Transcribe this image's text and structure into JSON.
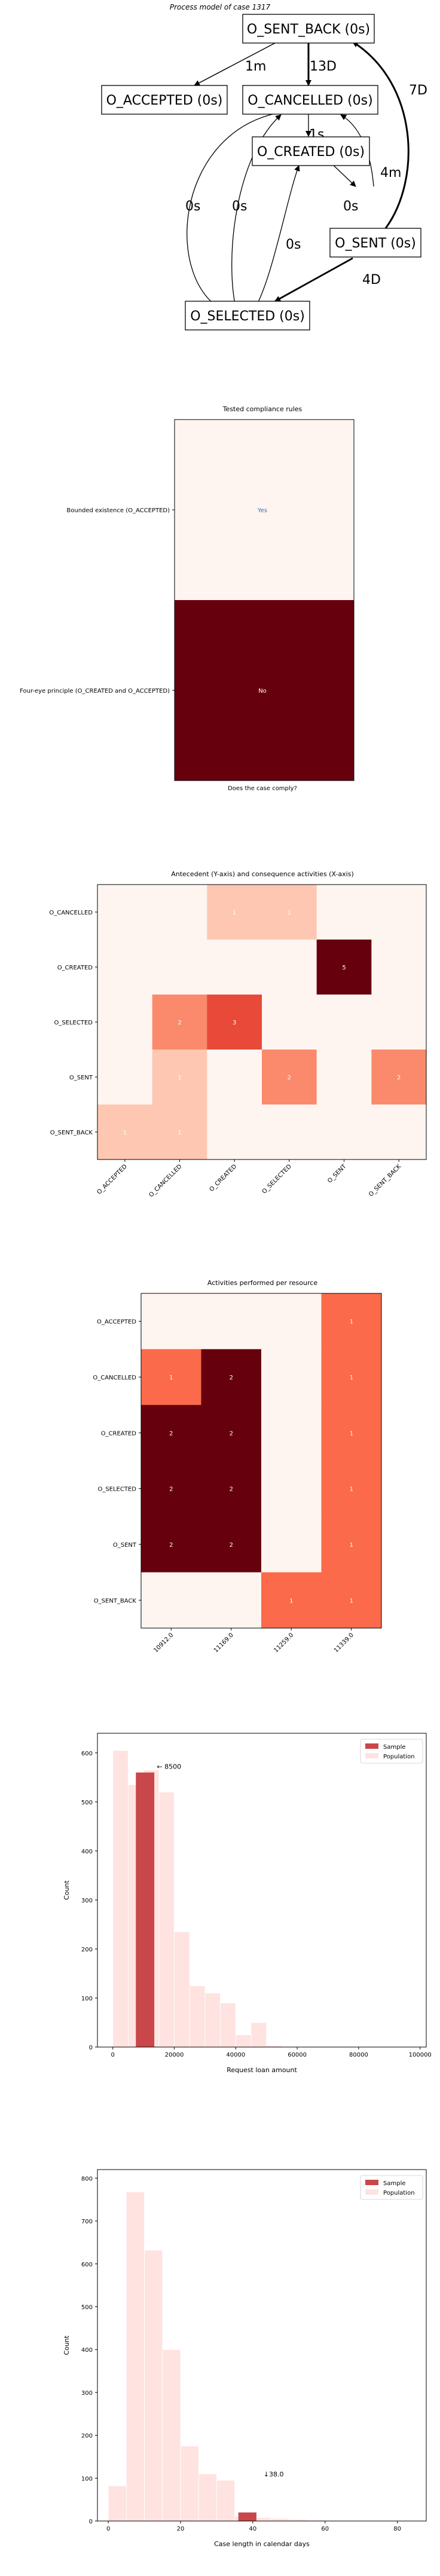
{
  "process_model": {
    "title": "Process model of case 1317",
    "nodes": [
      {
        "id": "O_SENT_BACK",
        "label": "O_SENT_BACK (0s)"
      },
      {
        "id": "O_ACCEPTED",
        "label": "O_ACCEPTED (0s)"
      },
      {
        "id": "O_CANCELLED",
        "label": "O_CANCELLED (0s)"
      },
      {
        "id": "O_CREATED",
        "label": "O_CREATED (0s)"
      },
      {
        "id": "O_SENT",
        "label": "O_SENT (0s)"
      },
      {
        "id": "O_SELECTED",
        "label": "O_SELECTED (0s)"
      }
    ],
    "edges": [
      {
        "from": "O_SENT_BACK",
        "to": "O_ACCEPTED",
        "label": "1m"
      },
      {
        "from": "O_SENT_BACK",
        "to": "O_CANCELLED",
        "label": "13D"
      },
      {
        "from": "O_CANCELLED",
        "to": "O_CREATED",
        "label": "1s"
      },
      {
        "from": "O_CANCELLED",
        "to": "O_SELECTED",
        "label": "0s"
      },
      {
        "from": "O_SELECTED",
        "to": "O_CANCELLED",
        "label": "0s"
      },
      {
        "from": "O_CREATED",
        "to": "O_SENT",
        "label": "0s"
      },
      {
        "from": "O_SELECTED",
        "to": "O_CREATED",
        "label": "0s"
      },
      {
        "from": "O_SENT",
        "to": "O_CANCELLED",
        "label": "4m"
      },
      {
        "from": "O_SENT",
        "to": "O_SELECTED",
        "label": "4D"
      },
      {
        "from": "O_SENT",
        "to": "O_SENT_BACK",
        "label": "7D"
      }
    ]
  },
  "compliance": {
    "title": "Tested compliance rules",
    "xlabel": "Does the case comply?",
    "rules": [
      "Bounded existence (O_ACCEPTED)",
      "Four-eye principle (O_CREATED and O_ACCEPTED)"
    ],
    "values": [
      "Yes",
      "No"
    ],
    "colors": [
      "#fff5f0",
      "#67000d"
    ]
  },
  "heatmap_ac": {
    "title": "Antecedent (Y-axis) and consequence activities (X-axis)",
    "rows": [
      "O_CANCELLED",
      "O_CREATED",
      "O_SELECTED",
      "O_SENT",
      "O_SENT_BACK"
    ],
    "cols": [
      "O_ACCEPTED",
      "O_CANCELLED",
      "O_CREATED",
      "O_SELECTED",
      "O_SENT",
      "O_SENT_BACK"
    ],
    "matrix": [
      [
        0,
        0,
        1,
        1,
        0,
        0
      ],
      [
        0,
        0,
        0,
        0,
        5,
        0
      ],
      [
        0,
        2,
        3,
        0,
        0,
        0
      ],
      [
        0,
        1,
        0,
        2,
        0,
        2
      ],
      [
        1,
        1,
        0,
        0,
        0,
        0
      ]
    ]
  },
  "heatmap_res": {
    "title": "Activities performed per resource",
    "rows": [
      "O_ACCEPTED",
      "O_CANCELLED",
      "O_CREATED",
      "O_SELECTED",
      "O_SENT",
      "O_SENT_BACK"
    ],
    "cols": [
      "10912.0",
      "11169.0",
      "11259.0",
      "11339.0"
    ],
    "matrix": [
      [
        0,
        0,
        0,
        1
      ],
      [
        1,
        2,
        0,
        1
      ],
      [
        2,
        2,
        0,
        1
      ],
      [
        2,
        2,
        0,
        1
      ],
      [
        2,
        2,
        0,
        1
      ],
      [
        0,
        0,
        1,
        1
      ]
    ]
  },
  "chart_data": [
    {
      "type": "bar",
      "xlabel": "Request loan amount",
      "ylabel": "Count",
      "xlim": [
        -5000,
        102000
      ],
      "xticks": [
        0,
        20000,
        40000,
        60000,
        80000,
        100000
      ],
      "ylim": [
        0,
        640
      ],
      "yticks": [
        0,
        100,
        200,
        300,
        400,
        500,
        600
      ],
      "legend": [
        "Sample",
        "Population"
      ],
      "legend_position": "top-right",
      "annotation": "← 8500",
      "annotation_x": 8500,
      "annotation_y": 555,
      "series": [
        {
          "name": "Population",
          "bin_width": 5000,
          "bins": [
            [
              0,
              605
            ],
            [
              5000,
              535
            ],
            [
              10000,
              565
            ],
            [
              15000,
              520
            ],
            [
              20000,
              235
            ],
            [
              25000,
              125
            ],
            [
              30000,
              110
            ],
            [
              35000,
              90
            ],
            [
              40000,
              25
            ],
            [
              45000,
              50
            ],
            [
              50000,
              3
            ],
            [
              55000,
              1
            ],
            [
              60000,
              1
            ],
            [
              65000,
              1
            ]
          ]
        },
        {
          "name": "Sample",
          "bin_width": 6000,
          "bins": [
            [
              7500,
              560
            ]
          ]
        }
      ]
    },
    {
      "type": "bar",
      "xlabel": "Case length in calendar days",
      "ylabel": "Count",
      "xlim": [
        -3,
        88
      ],
      "xticks": [
        0,
        20,
        40,
        60,
        80
      ],
      "ylim": [
        0,
        820
      ],
      "yticks": [
        0,
        100,
        200,
        300,
        400,
        500,
        600,
        700,
        800
      ],
      "legend": [
        "Sample",
        "Population"
      ],
      "legend_position": "top-right",
      "annotation": "↓38.0",
      "annotation_x": 38,
      "annotation_y": 90,
      "series": [
        {
          "name": "Population",
          "bin_width": 5,
          "bins": [
            [
              0,
              82
            ],
            [
              5,
              768
            ],
            [
              10,
              632
            ],
            [
              15,
              400
            ],
            [
              20,
              175
            ],
            [
              25,
              110
            ],
            [
              30,
              95
            ],
            [
              35,
              10
            ],
            [
              40,
              8
            ],
            [
              45,
              6
            ],
            [
              50,
              4
            ],
            [
              55,
              2
            ],
            [
              60,
              1
            ]
          ]
        },
        {
          "name": "Sample",
          "bin_width": 5,
          "bins": [
            [
              36,
              20
            ]
          ]
        }
      ]
    }
  ]
}
